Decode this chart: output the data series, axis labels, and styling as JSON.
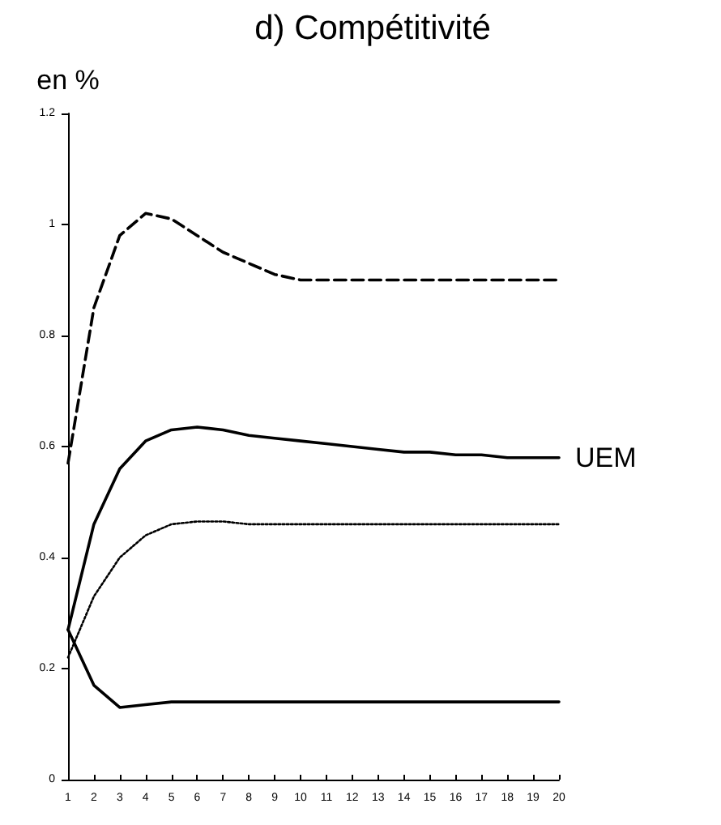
{
  "chart_data": {
    "type": "line",
    "title": "d) Compétitivité",
    "ylabel": "en %",
    "x": [
      1,
      2,
      3,
      4,
      5,
      6,
      7,
      8,
      9,
      10,
      11,
      12,
      13,
      14,
      15,
      16,
      17,
      18,
      19,
      20
    ],
    "xlim": [
      1,
      20
    ],
    "xticks": [
      1,
      2,
      3,
      4,
      5,
      6,
      7,
      8,
      9,
      10,
      11,
      12,
      13,
      14,
      15,
      16,
      17,
      18,
      19,
      20
    ],
    "ylim": [
      0,
      1.2
    ],
    "yticks": [
      0,
      0.2,
      0.4,
      0.6,
      0.8,
      1,
      1.2
    ],
    "grid": false,
    "legend": false,
    "marker": "none",
    "series": [
      {
        "color": "#000000",
        "line_style": "dashed",
        "values": [
          0.57,
          0.85,
          0.98,
          1.02,
          1.01,
          0.98,
          0.95,
          0.93,
          0.91,
          0.9,
          0.9,
          0.9,
          0.9,
          0.9,
          0.9,
          0.9,
          0.9,
          0.9,
          0.9,
          0.9
        ]
      },
      {
        "name": "UEM",
        "color": "#000000",
        "line_style": "solid",
        "values": [
          0.27,
          0.46,
          0.56,
          0.61,
          0.63,
          0.635,
          0.63,
          0.62,
          0.615,
          0.61,
          0.605,
          0.6,
          0.595,
          0.59,
          0.59,
          0.585,
          0.585,
          0.58,
          0.58,
          0.58
        ]
      },
      {
        "color": "#000000",
        "line_style": "dotted",
        "values": [
          0.22,
          0.33,
          0.4,
          0.44,
          0.46,
          0.465,
          0.465,
          0.46,
          0.46,
          0.46,
          0.46,
          0.46,
          0.46,
          0.46,
          0.46,
          0.46,
          0.46,
          0.46,
          0.46,
          0.46
        ]
      },
      {
        "color": "#000000",
        "line_style": "solid",
        "values": [
          0.27,
          0.17,
          0.13,
          0.135,
          0.14,
          0.14,
          0.14,
          0.14,
          0.14,
          0.14,
          0.14,
          0.14,
          0.14,
          0.14,
          0.14,
          0.14,
          0.14,
          0.14,
          0.14,
          0.14
        ]
      }
    ]
  }
}
